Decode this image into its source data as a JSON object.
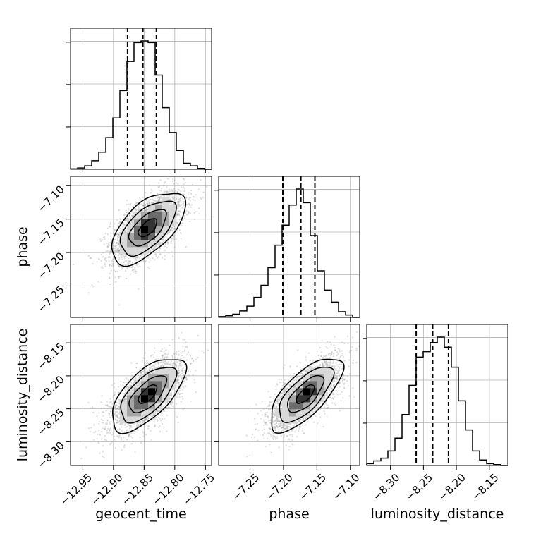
{
  "chart_data": {
    "type": "corner",
    "parameters": [
      "geocent_time",
      "phase",
      "luminosity_distance"
    ],
    "axis_labels": {
      "geocent_time": "geocent_time",
      "phase": "phase",
      "luminosity_distance": "luminosity_distance"
    },
    "ranges": {
      "geocent_time": [
        -12.97,
        -12.74
      ],
      "phase": [
        -7.297,
        -7.086
      ],
      "luminosity_distance": [
        -8.336,
        -8.122
      ]
    },
    "ticks": {
      "geocent_time": [
        -12.95,
        -12.9,
        -12.85,
        -12.8,
        -12.75
      ],
      "phase": [
        -7.25,
        -7.2,
        -7.15,
        -7.1
      ],
      "luminosity_distance": [
        -8.3,
        -8.25,
        -8.2,
        -8.15
      ]
    },
    "tick_labels": {
      "geocent_time": [
        "−12.95",
        "−12.90",
        "−12.85",
        "−12.80",
        "−12.75"
      ],
      "phase": [
        "−7.25",
        "−7.20",
        "−7.15",
        "−7.10"
      ],
      "luminosity_distance": [
        "−8.30",
        "−8.25",
        "−8.20",
        "−8.15"
      ]
    },
    "quantiles": {
      "geocent_time": [
        -12.877,
        -12.852,
        -12.83
      ],
      "phase": [
        -7.201,
        -7.174,
        -7.153
      ],
      "luminosity_distance": [
        -8.261,
        -8.236,
        -8.212
      ]
    },
    "histograms": {
      "geocent_time": {
        "edges": [
          -12.97,
          -12.9585,
          -12.947,
          -12.9355,
          -12.924,
          -12.9125,
          -12.901,
          -12.8895,
          -12.878,
          -12.8665,
          -12.855,
          -12.8435,
          -12.832,
          -12.8205,
          -12.809,
          -12.7975,
          -12.786,
          -12.7745,
          -12.763,
          -12.7515,
          -12.74
        ],
        "counts": [
          0.5,
          1.5,
          4,
          10,
          20,
          37,
          60,
          92,
          126,
          148,
          150,
          148,
          110,
          72,
          43,
          22,
          7,
          4,
          1,
          0
        ]
      },
      "phase": {
        "edges": [
          -7.297,
          -7.28645,
          -7.2759,
          -7.26535,
          -7.2548,
          -7.24425,
          -7.2337,
          -7.22315,
          -7.2126,
          -7.20205,
          -7.1915,
          -7.18095,
          -7.1704,
          -7.15985,
          -7.1493,
          -7.13875,
          -7.1282,
          -7.11765,
          -7.1071,
          -7.09655,
          -7.086
        ],
        "counts": [
          1,
          2,
          4,
          8,
          14,
          25,
          40,
          62,
          90,
          115,
          140,
          160,
          143,
          102,
          58,
          34,
          19,
          7,
          3,
          0
        ]
      },
      "luminosity_distance": {
        "edges": [
          -8.336,
          -8.3253,
          -8.3146,
          -8.3039,
          -8.2932,
          -8.2825,
          -8.2718,
          -8.2611,
          -8.2504,
          -8.2397,
          -8.229,
          -8.2183,
          -8.2076,
          -8.1969,
          -8.1862,
          -8.1755,
          -8.1648,
          -8.1541,
          -8.1434,
          -8.1327,
          -8.122
        ],
        "counts": [
          2,
          5,
          8,
          16,
          30,
          56,
          88,
          119,
          125,
          135,
          141,
          130,
          108,
          71,
          39,
          16,
          6,
          2,
          1,
          0
        ]
      }
    },
    "pairs": [
      {
        "x": "geocent_time",
        "y": "phase",
        "center": [
          -12.844,
          -7.163
        ],
        "sigma": [
          0.03,
          0.027
        ],
        "rho": 0.6,
        "contour_levels": [
          0.5,
          1.0,
          1.5,
          2.0
        ]
      },
      {
        "x": "geocent_time",
        "y": "luminosity_distance",
        "center": [
          -12.844,
          -8.228
        ],
        "sigma": [
          0.03,
          0.028
        ],
        "rho": 0.65,
        "contour_levels": [
          0.5,
          1.0,
          1.5,
          2.0
        ]
      },
      {
        "x": "phase",
        "y": "luminosity_distance",
        "center": [
          -7.167,
          -8.228
        ],
        "sigma": [
          0.027,
          0.028
        ],
        "rho": 0.7,
        "contour_levels": [
          0.5,
          1.0,
          1.5,
          2.0
        ]
      }
    ],
    "grid": true,
    "point_color": "#9a9a9a",
    "density_colors": [
      "#ffffff",
      "#d9d9d9",
      "#a6a6a6",
      "#6b6b6b",
      "#333333",
      "#000000"
    ]
  }
}
